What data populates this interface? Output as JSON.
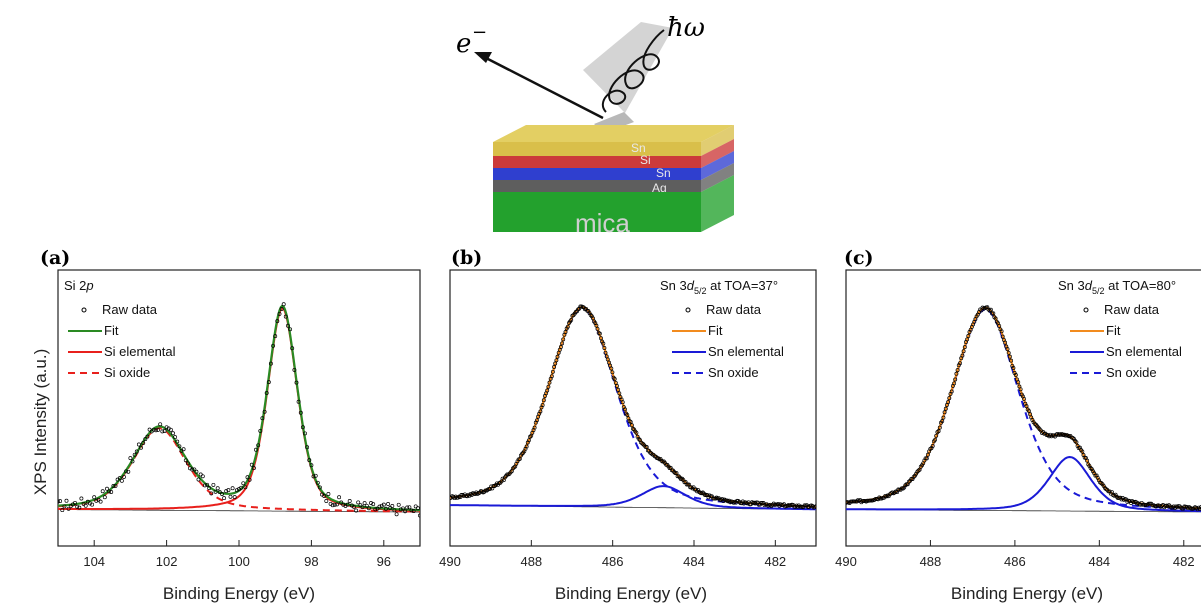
{
  "schematic": {
    "electron_label": "e",
    "electron_superscript": "−",
    "photon_label": "ħω",
    "layers": [
      {
        "label": "Sn",
        "color": "#d9bf4a",
        "top_color": "#e3cf63"
      },
      {
        "label": "Si",
        "color": "#cc3a3a"
      },
      {
        "label": "Sn",
        "color": "#2f3fcf"
      },
      {
        "label": "Ag",
        "color": "#5e5e5e"
      },
      {
        "label": "mica",
        "color": "#23a12d"
      }
    ]
  },
  "y_axis_title": "XPS Intensity (a.u.)",
  "chart_data": [
    {
      "panel": "(a)",
      "type": "line",
      "title": "Si 2p",
      "title_main": "Si 2",
      "title_italic": "p",
      "xlabel": "Binding Energy (eV)",
      "xlim": [
        105,
        95
      ],
      "xticks": [
        "104",
        "102",
        "100",
        "98",
        "96"
      ],
      "xtick_values": [
        104,
        102,
        100,
        98,
        96
      ],
      "legend": [
        {
          "label": "Raw data",
          "style": "marker",
          "color": "#000000"
        },
        {
          "label": "Fit",
          "style": "solid",
          "color": "#2a8a23"
        },
        {
          "label": "Si elemental",
          "style": "solid",
          "color": "#e8201c"
        },
        {
          "label": "Si oxide",
          "style": "dashed",
          "color": "#e8201c"
        }
      ],
      "background": {
        "left": 0.03,
        "right": 0.0
      },
      "components": [
        {
          "name": "Si oxide",
          "center": 102.2,
          "height": 0.38,
          "width": 0.75,
          "color": "#e8201c",
          "dash": true
        },
        {
          "name": "Si elemental",
          "center": 98.8,
          "height": 0.94,
          "width": 0.42,
          "color": "#e8201c",
          "dash": false
        }
      ],
      "noise": 0.025
    },
    {
      "panel": "(b)",
      "type": "line",
      "title": "Sn 3d5/2 at TOA=37°",
      "title_main": "Sn 3",
      "title_italic": "d",
      "title_sub": "5/2",
      "title_rest": " at TOA=37°",
      "xlabel": "Binding Energy (eV)",
      "xlim": [
        490,
        481
      ],
      "xticks": [
        "490",
        "488",
        "486",
        "484",
        "482"
      ],
      "xtick_values": [
        490,
        488,
        486,
        484,
        482
      ],
      "legend": [
        {
          "label": "Raw data",
          "style": "marker",
          "color": "#000000"
        },
        {
          "label": "Fit",
          "style": "solid",
          "color": "#f28b1e"
        },
        {
          "label": "Sn elemental",
          "style": "solid",
          "color": "#1a1ad6"
        },
        {
          "label": "Sn oxide",
          "style": "dashed",
          "color": "#1a1ad6"
        }
      ],
      "background": {
        "left": 0.05,
        "right": 0.0
      },
      "components": [
        {
          "name": "Sn oxide",
          "center": 486.75,
          "height": 0.92,
          "width": 0.85,
          "color": "#1a1ad6",
          "dash": true
        },
        {
          "name": "Sn elemental",
          "center": 484.75,
          "height": 0.1,
          "width": 0.55,
          "color": "#1a1ad6",
          "dash": false
        }
      ],
      "noise": 0.006
    },
    {
      "panel": "(c)",
      "type": "line",
      "title": "Sn 3d5/2 at TOA=80°",
      "title_main": "Sn 3",
      "title_italic": "d",
      "title_sub": "5/2",
      "title_rest": " at TOA=80°",
      "xlabel": "Binding Energy (eV)",
      "xlim": [
        490,
        481
      ],
      "xticks": [
        "490",
        "488",
        "486",
        "484",
        "482"
      ],
      "xtick_values": [
        490,
        488,
        486,
        484,
        482
      ],
      "legend": [
        {
          "label": "Raw data",
          "style": "marker",
          "color": "#000000"
        },
        {
          "label": "Fit",
          "style": "solid",
          "color": "#f28b1e"
        },
        {
          "label": "Sn elemental",
          "style": "solid",
          "color": "#1a1ad6"
        },
        {
          "label": "Sn oxide",
          "style": "dashed",
          "color": "#1a1ad6"
        }
      ],
      "background": {
        "left": 0.03,
        "right": 0.0
      },
      "components": [
        {
          "name": "Sn oxide",
          "center": 486.7,
          "height": 0.93,
          "width": 0.8,
          "color": "#1a1ad6",
          "dash": true
        },
        {
          "name": "Sn elemental",
          "center": 484.7,
          "height": 0.25,
          "width": 0.5,
          "color": "#1a1ad6",
          "dash": false
        }
      ],
      "noise": 0.006
    }
  ]
}
